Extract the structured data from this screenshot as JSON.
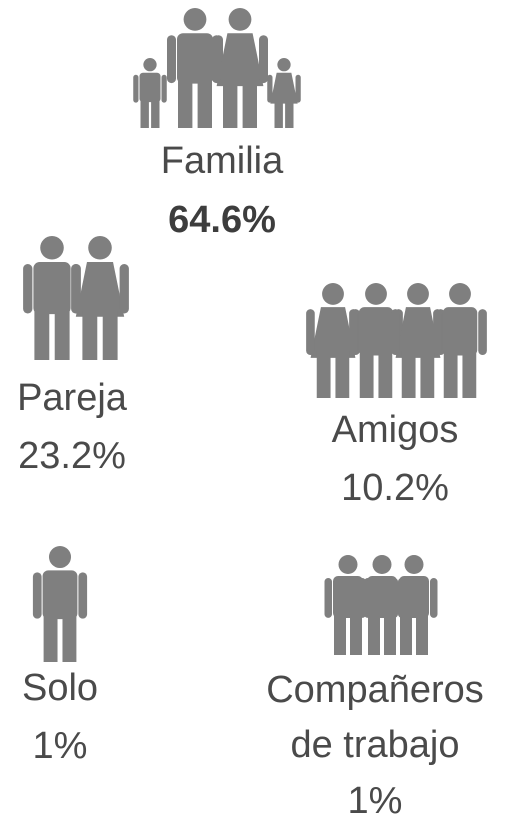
{
  "items": [
    {
      "label": "Familia",
      "value": "64.6%"
    },
    {
      "label": "Pareja",
      "value": "23.2%"
    },
    {
      "label": "Amigos",
      "value": "10.2%"
    },
    {
      "label": "Solo",
      "value": "1%"
    },
    {
      "label_lines": [
        "Compañeros",
        "de trabajo"
      ],
      "value": "1%"
    }
  ]
}
